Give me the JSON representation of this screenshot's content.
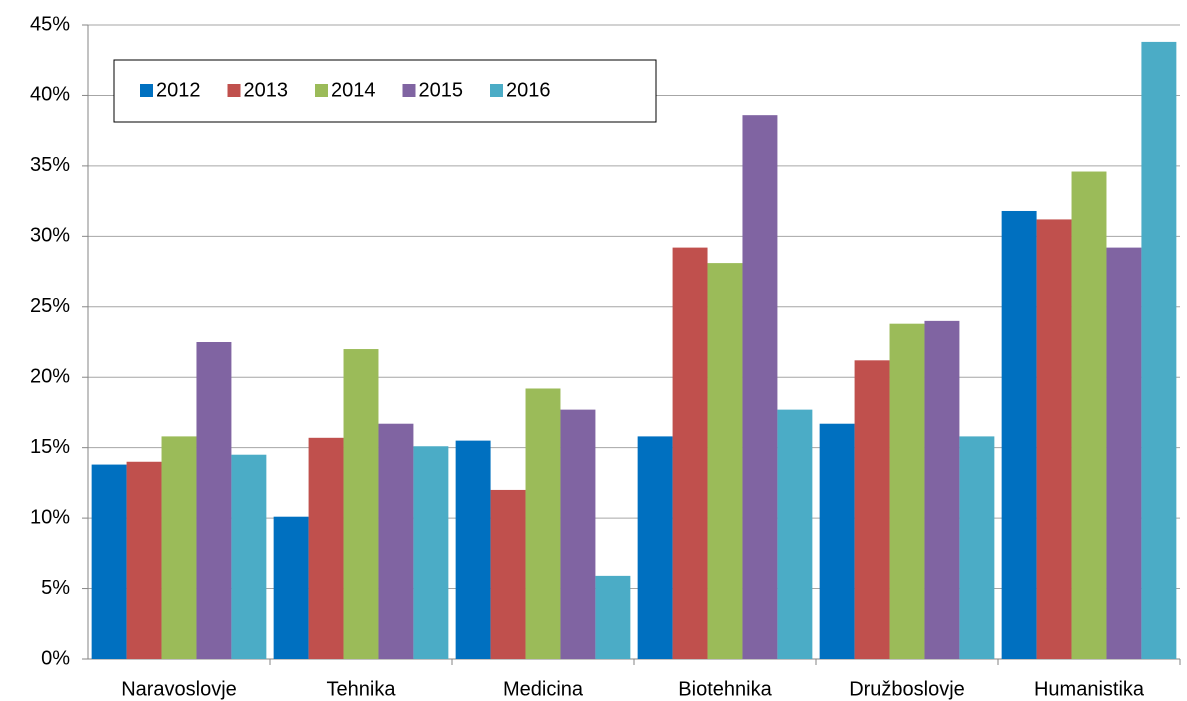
{
  "chart_data": {
    "type": "bar",
    "categories": [
      "Naravoslovje",
      "Tehnika",
      "Medicina",
      "Biotehnika",
      "Družboslovje",
      "Humanistika"
    ],
    "series": [
      {
        "name": "2012",
        "color": "#0070c0",
        "values": [
          13.8,
          10.1,
          15.5,
          15.8,
          16.7,
          31.8
        ]
      },
      {
        "name": "2013",
        "color": "#c0504d",
        "values": [
          14.0,
          15.7,
          12.0,
          29.2,
          21.2,
          31.2
        ]
      },
      {
        "name": "2014",
        "color": "#9bbb59",
        "values": [
          15.8,
          22.0,
          19.2,
          28.1,
          23.8,
          34.6
        ]
      },
      {
        "name": "2015",
        "color": "#8064a2",
        "values": [
          22.5,
          16.7,
          17.7,
          38.6,
          24.0,
          29.2
        ]
      },
      {
        "name": "2016",
        "color": "#4bacc6",
        "values": [
          14.5,
          15.1,
          5.9,
          17.7,
          15.8,
          43.8
        ]
      }
    ],
    "ylim": [
      0,
      45
    ],
    "yticks": [
      {
        "value": 0,
        "label": "0%"
      },
      {
        "value": 5,
        "label": "5%"
      },
      {
        "value": 10,
        "label": "10%"
      },
      {
        "value": 15,
        "label": "15%"
      },
      {
        "value": 20,
        "label": "20%"
      },
      {
        "value": 25,
        "label": "25%"
      },
      {
        "value": 30,
        "label": "30%"
      },
      {
        "value": 35,
        "label": "35%"
      },
      {
        "value": 40,
        "label": "40%"
      },
      {
        "value": 45,
        "label": "45%"
      }
    ],
    "grid": true,
    "legend": "upper left"
  }
}
